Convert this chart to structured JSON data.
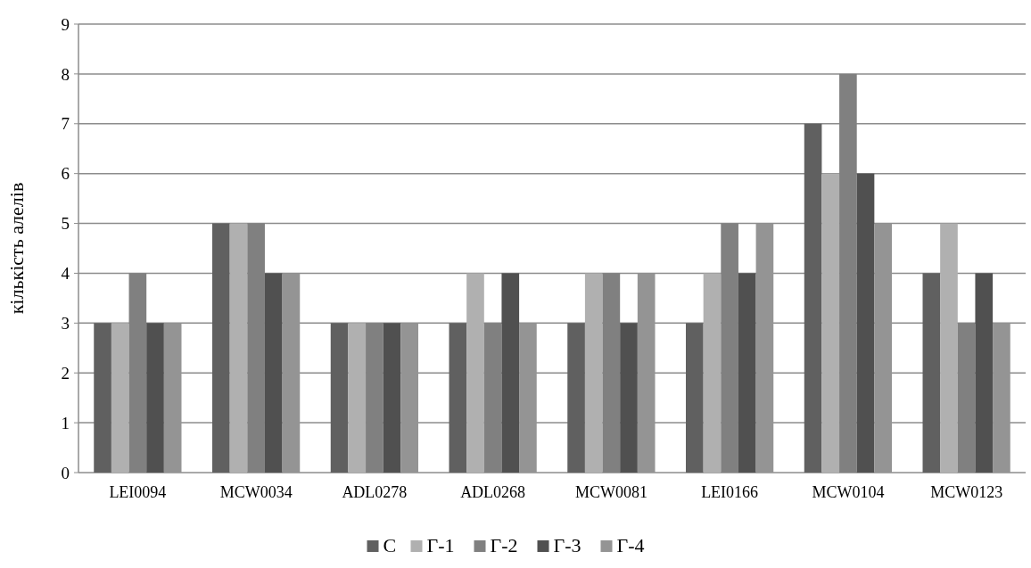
{
  "chart_data": {
    "type": "bar",
    "ylabel": "кількість алелів",
    "categories": [
      "LEI0094",
      "MCW0034",
      "ADL0278",
      "ADL0268",
      "MCW0081",
      "LEI0166",
      "MCW0104",
      "MCW0123"
    ],
    "series": [
      {
        "name": "C",
        "color": "#606060",
        "values": [
          3,
          5,
          3,
          3,
          3,
          3,
          7,
          4
        ]
      },
      {
        "name": "Г-1",
        "color": "#b0b0b0",
        "values": [
          3,
          5,
          3,
          4,
          4,
          4,
          6,
          5
        ]
      },
      {
        "name": "Г-2",
        "color": "#808080",
        "values": [
          4,
          5,
          3,
          3,
          4,
          5,
          8,
          3
        ]
      },
      {
        "name": "Г-3",
        "color": "#505050",
        "values": [
          3,
          4,
          3,
          4,
          3,
          4,
          6,
          4
        ]
      },
      {
        "name": "Г-4",
        "color": "#949494",
        "values": [
          3,
          4,
          3,
          3,
          4,
          5,
          5,
          3
        ]
      }
    ],
    "ylim": [
      0,
      9
    ],
    "yticks": [
      0,
      1,
      2,
      3,
      4,
      5,
      6,
      7,
      8,
      9
    ],
    "grid": "y",
    "legend": "bottom"
  }
}
